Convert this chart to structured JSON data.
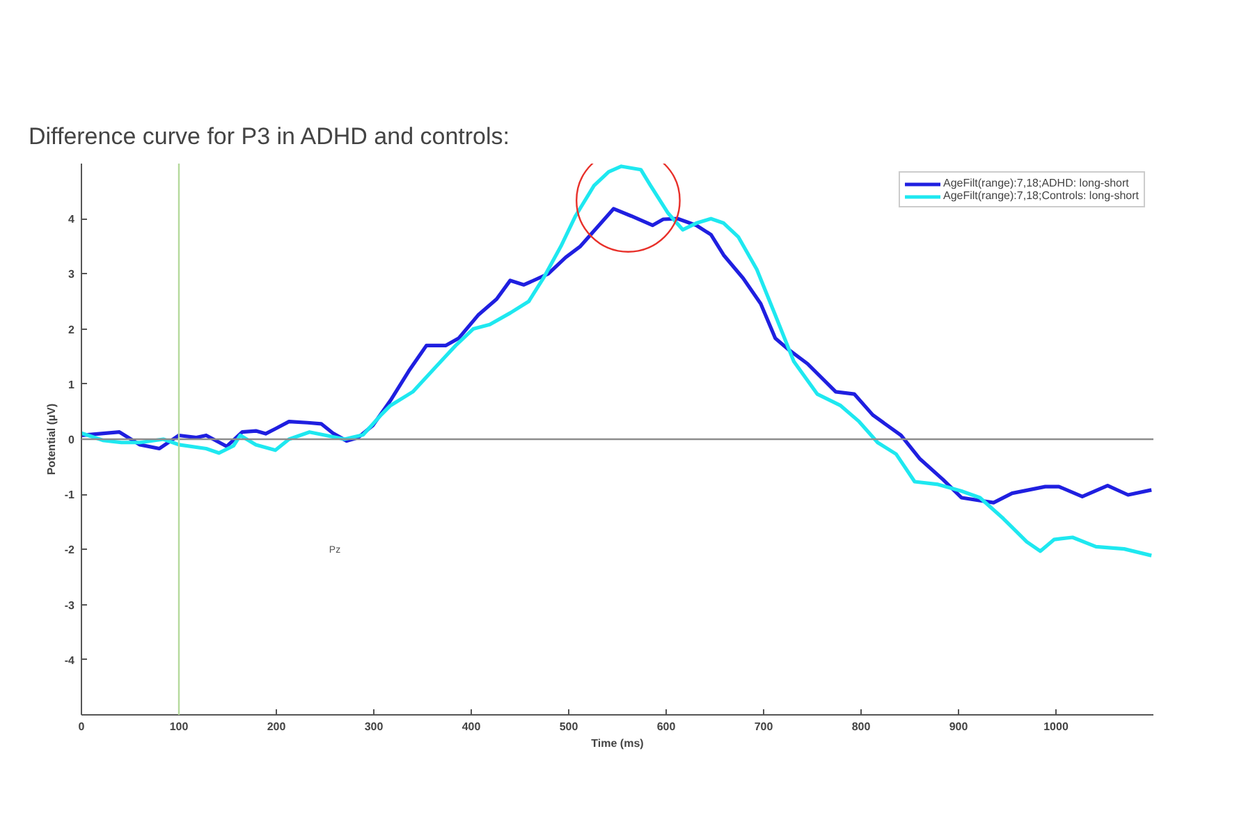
{
  "chart_data": {
    "type": "line",
    "title": "Difference curve for P3 in ADHD and controls:",
    "xlabel": "Time (ms)",
    "ylabel": "Potential (µV)",
    "xlim": [
      0,
      1100
    ],
    "ylim": [
      -5,
      5
    ],
    "xticks": [
      0,
      100,
      200,
      300,
      400,
      500,
      600,
      700,
      800,
      900,
      1000
    ],
    "yticks": [
      -4,
      -3,
      -2,
      -1,
      0,
      1,
      2,
      3,
      4
    ],
    "grid": false,
    "legend": "top right",
    "marker": "none",
    "line_style": "solid",
    "annotations": [
      "Pz"
    ],
    "ref_lines": [
      {
        "axis": "y",
        "value": 0,
        "label": null,
        "color": "#8c8c8c"
      },
      {
        "axis": "x",
        "value": 100,
        "label": null,
        "color": "#b5d99c"
      }
    ],
    "series": [
      {
        "name": "AgeFilt(range):7,18;ADHD: long-short",
        "color": "#1f1fe0",
        "x": [
          0,
          39,
          60,
          80,
          100,
          118,
          128,
          149,
          165,
          179,
          189,
          199,
          213,
          232,
          246,
          258,
          272,
          284,
          299,
          317,
          336,
          354,
          374,
          387,
          407,
          426,
          440,
          454,
          479,
          497,
          512,
          531,
          546,
          564,
          586,
          597,
          612,
          631,
          646,
          659,
          679,
          697,
          712,
          726,
          745,
          774,
          793,
          812,
          841,
          860,
          884,
          903,
          936,
          955,
          989,
          1003,
          1027,
          1053,
          1074,
          1098
        ],
        "values": [
          0.07,
          0.13,
          -0.1,
          -0.17,
          0.07,
          0.03,
          0.07,
          -0.13,
          0.13,
          0.15,
          0.1,
          0.19,
          0.32,
          0.3,
          0.28,
          0.11,
          -0.03,
          0.03,
          0.25,
          0.7,
          1.24,
          1.7,
          1.7,
          1.83,
          2.25,
          2.54,
          2.88,
          2.8,
          3.0,
          3.3,
          3.5,
          3.88,
          4.18,
          4.05,
          3.88,
          3.99,
          4.0,
          3.88,
          3.71,
          3.34,
          2.92,
          2.46,
          1.83,
          1.62,
          1.37,
          0.86,
          0.82,
          0.44,
          0.07,
          -0.35,
          -0.73,
          -1.06,
          -1.15,
          -0.98,
          -0.86,
          -0.86,
          -1.04,
          -0.84,
          -1.01,
          -0.92
        ]
      },
      {
        "name": "AgeFilt(range):7,18;Controls: long-short",
        "color": "#1ee8f0",
        "x": [
          0,
          22,
          41,
          60,
          84,
          100,
          128,
          141,
          156,
          163,
          179,
          199,
          213,
          234,
          251,
          270,
          289,
          308,
          317,
          340,
          364,
          384,
          402,
          419,
          440,
          459,
          474,
          492,
          507,
          526,
          541,
          554,
          574,
          584,
          602,
          617,
          631,
          646,
          659,
          674,
          693,
          712,
          731,
          755,
          779,
          798,
          817,
          836,
          855,
          879,
          903,
          922,
          946,
          970,
          984,
          998,
          1017,
          1041,
          1070,
          1098
        ],
        "values": [
          0.11,
          -0.02,
          -0.06,
          -0.06,
          0,
          -0.1,
          -0.17,
          -0.25,
          -0.12,
          0.07,
          -0.1,
          -0.2,
          0,
          0.13,
          0.07,
          0,
          0.08,
          0.45,
          0.61,
          0.86,
          1.32,
          1.7,
          2.0,
          2.08,
          2.29,
          2.5,
          2.92,
          3.5,
          4.05,
          4.6,
          4.85,
          4.95,
          4.89,
          4.6,
          4.1,
          3.8,
          3.92,
          4.0,
          3.92,
          3.67,
          3.08,
          2.25,
          1.41,
          0.82,
          0.61,
          0.32,
          -0.06,
          -0.27,
          -0.77,
          -0.82,
          -0.94,
          -1.06,
          -1.44,
          -1.86,
          -2.03,
          -1.82,
          -1.78,
          -1.95,
          -1.99,
          -2.11
        ]
      }
    ]
  }
}
